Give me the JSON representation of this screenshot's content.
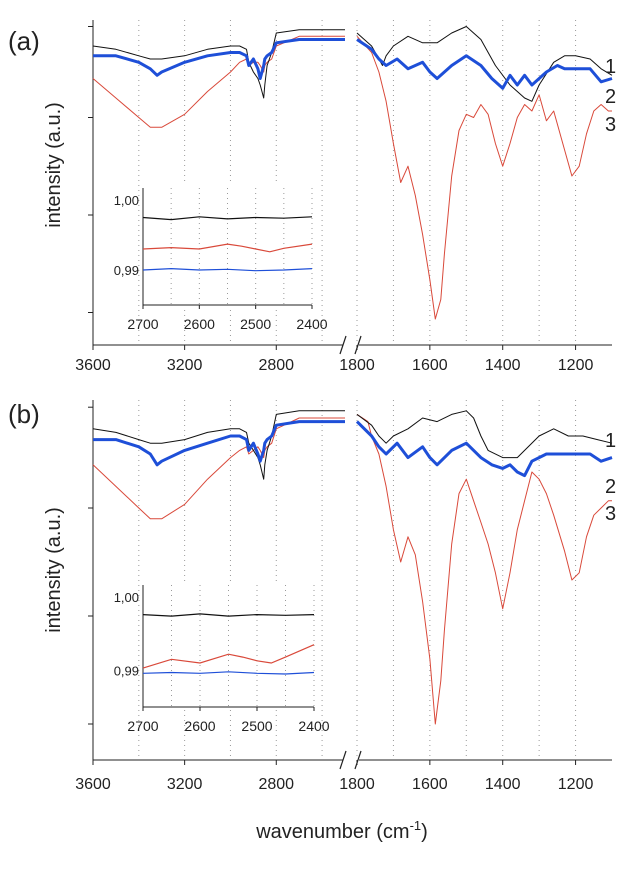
{
  "colors": {
    "trace1": "#111111",
    "trace2": "#1e4fd8",
    "trace3": "#d9493a",
    "grid": "#9a9a9a",
    "axis": "#222222"
  },
  "common": {
    "xlabel": "wavenumber (cm",
    "xlabel_sup": "-1",
    "xlabel_end": ")"
  },
  "chart_data": [
    {
      "panel": "(a)",
      "type": "line",
      "ylabel": "intensity (a.u.)",
      "x_axis": {
        "break": [
          2500,
          1800
        ],
        "ticks": [
          3600,
          3200,
          2800,
          1800,
          1600,
          1400,
          1200
        ],
        "range": [
          3600,
          1100
        ],
        "reversed": true
      },
      "series_labels": [
        "1",
        "2",
        "3"
      ],
      "series": [
        {
          "name": "1",
          "x": [
            3600,
            3500,
            3400,
            3350,
            3300,
            3200,
            3100,
            3000,
            2960,
            2930,
            2920,
            2900,
            2880,
            2870,
            2855,
            2850,
            2840,
            2820,
            2800,
            2700,
            2600,
            2500,
            1800,
            1760,
            1740,
            1730,
            1720,
            1700,
            1660,
            1620,
            1580,
            1540,
            1500,
            1460,
            1420,
            1380,
            1340,
            1320,
            1300,
            1260,
            1230,
            1200,
            1160,
            1130,
            1100
          ],
          "y": [
            92,
            91,
            89,
            88,
            88,
            89,
            91,
            92,
            92,
            91,
            87,
            84,
            82,
            80,
            76,
            80,
            86,
            90,
            96,
            97,
            97,
            97,
            96,
            92,
            88,
            86,
            89,
            92,
            95,
            93,
            93,
            96,
            98,
            94,
            86,
            80,
            76,
            75,
            80,
            87,
            89,
            89,
            88,
            85,
            83
          ]
        },
        {
          "name": "2",
          "x": [
            3600,
            3500,
            3400,
            3350,
            3320,
            3300,
            3200,
            3100,
            3000,
            2960,
            2930,
            2920,
            2900,
            2880,
            2870,
            2855,
            2850,
            2840,
            2820,
            2800,
            2700,
            2600,
            2500,
            1800,
            1760,
            1740,
            1720,
            1690,
            1660,
            1620,
            1600,
            1580,
            1540,
            1500,
            1460,
            1430,
            1400,
            1380,
            1360,
            1340,
            1320,
            1280,
            1250,
            1230,
            1200,
            1160,
            1130,
            1100
          ],
          "y": [
            89,
            89,
            87,
            85,
            83,
            84,
            87,
            89,
            90,
            90,
            89,
            86,
            88,
            85,
            82,
            86,
            88,
            89,
            90,
            93,
            94,
            94,
            94,
            94,
            91,
            88,
            86,
            88,
            85,
            87,
            84,
            82,
            86,
            89,
            86,
            82,
            79,
            83,
            80,
            83,
            80,
            84,
            86,
            85,
            85,
            85,
            81,
            82
          ]
        },
        {
          "name": "3",
          "x": [
            3600,
            3500,
            3400,
            3350,
            3300,
            3200,
            3100,
            3000,
            2960,
            2930,
            2920,
            2900,
            2880,
            2870,
            2855,
            2850,
            2840,
            2820,
            2800,
            2700,
            2600,
            2500,
            1800,
            1760,
            1740,
            1720,
            1700,
            1680,
            1660,
            1640,
            1620,
            1600,
            1585,
            1570,
            1560,
            1540,
            1520,
            1500,
            1480,
            1460,
            1440,
            1420,
            1400,
            1380,
            1360,
            1340,
            1320,
            1300,
            1280,
            1260,
            1230,
            1210,
            1190,
            1170,
            1150,
            1130,
            1110,
            1100
          ],
          "y": [
            82,
            76,
            70,
            67,
            67,
            71,
            78,
            84,
            87,
            88,
            86,
            87,
            87,
            86,
            84,
            86,
            87,
            88,
            92,
            95,
            95,
            95,
            95,
            90,
            84,
            75,
            62,
            50,
            55,
            46,
            34,
            20,
            8,
            14,
            28,
            52,
            66,
            71,
            70,
            74,
            71,
            62,
            55,
            62,
            70,
            74,
            72,
            77,
            69,
            72,
            60,
            52,
            55,
            65,
            72,
            74,
            72,
            72
          ]
        }
      ],
      "inset": {
        "xticks": [
          2700,
          2600,
          2500,
          2400
        ],
        "yticks": [
          "1,00",
          "0,99"
        ],
        "y_values": [
          1.0,
          0.99
        ],
        "xlim": [
          2700,
          2400
        ],
        "ylim": [
          0.985,
          1.0
        ],
        "series": [
          {
            "name": "1",
            "x": [
              2700,
              2650,
              2600,
              2550,
              2500,
              2450,
              2400
            ],
            "y": [
              0.9975,
              0.9972,
              0.9976,
              0.9973,
              0.9975,
              0.9974,
              0.9976
            ]
          },
          {
            "name": "2",
            "x": [
              2700,
              2650,
              2600,
              2550,
              2500,
              2450,
              2400
            ],
            "y": [
              0.99,
              0.9902,
              0.99,
              0.9901,
              0.9899,
              0.99,
              0.9902
            ]
          },
          {
            "name": "3",
            "x": [
              2700,
              2650,
              2600,
              2550,
              2525,
              2500,
              2475,
              2450,
              2400
            ],
            "y": [
              0.993,
              0.9932,
              0.993,
              0.9937,
              0.9934,
              0.993,
              0.9926,
              0.9931,
              0.9937
            ]
          }
        ]
      }
    },
    {
      "panel": "(b)",
      "type": "line",
      "ylabel": "intensity (a.u.)",
      "x_axis": {
        "break": [
          2500,
          1800
        ],
        "ticks": [
          3600,
          3200,
          2800,
          1800,
          1600,
          1400,
          1200
        ],
        "range": [
          3600,
          1100
        ],
        "reversed": true
      },
      "series_labels": [
        "1",
        "2",
        "3"
      ],
      "series": [
        {
          "name": "1",
          "x": [
            3600,
            3500,
            3400,
            3350,
            3300,
            3200,
            3100,
            3000,
            2960,
            2930,
            2920,
            2900,
            2880,
            2870,
            2855,
            2850,
            2840,
            2820,
            2800,
            2700,
            2600,
            2500,
            1800,
            1760,
            1740,
            1720,
            1700,
            1660,
            1620,
            1580,
            1540,
            1500,
            1480,
            1460,
            1440,
            1400,
            1360,
            1340,
            1300,
            1260,
            1220,
            1180,
            1140,
            1100
          ],
          "y": [
            92,
            91,
            89,
            88,
            88,
            89,
            91,
            92,
            92,
            91,
            88,
            86,
            84,
            82,
            78,
            82,
            86,
            90,
            96,
            97,
            97,
            97,
            96,
            93,
            90,
            88,
            90,
            92,
            95,
            94,
            96,
            97,
            95,
            90,
            86,
            84,
            84,
            86,
            90,
            92,
            90,
            90,
            89,
            88
          ]
        },
        {
          "name": "2",
          "x": [
            3600,
            3500,
            3400,
            3350,
            3320,
            3300,
            3200,
            3100,
            3000,
            2960,
            2930,
            2920,
            2900,
            2880,
            2870,
            2855,
            2850,
            2840,
            2820,
            2800,
            2700,
            2600,
            2500,
            1800,
            1760,
            1740,
            1720,
            1690,
            1660,
            1620,
            1600,
            1580,
            1540,
            1500,
            1460,
            1430,
            1400,
            1380,
            1360,
            1340,
            1320,
            1300,
            1280,
            1250,
            1200,
            1160,
            1130,
            1100
          ],
          "y": [
            89,
            89,
            87,
            85,
            82,
            83,
            86,
            88,
            90,
            90,
            89,
            86,
            88,
            85,
            83,
            86,
            88,
            89,
            90,
            93,
            94,
            94,
            94,
            94,
            90,
            87,
            85,
            88,
            84,
            87,
            84,
            82,
            86,
            88,
            84,
            82,
            81,
            82,
            80,
            79,
            83,
            84,
            85,
            85,
            85,
            85,
            83,
            84
          ]
        },
        {
          "name": "3",
          "x": [
            3600,
            3500,
            3400,
            3350,
            3300,
            3200,
            3100,
            3000,
            2960,
            2930,
            2920,
            2900,
            2880,
            2870,
            2855,
            2850,
            2840,
            2820,
            2800,
            2700,
            2600,
            2500,
            1800,
            1770,
            1760,
            1740,
            1720,
            1700,
            1680,
            1660,
            1640,
            1620,
            1600,
            1585,
            1570,
            1560,
            1540,
            1520,
            1500,
            1480,
            1460,
            1440,
            1420,
            1400,
            1380,
            1360,
            1340,
            1320,
            1300,
            1280,
            1260,
            1230,
            1210,
            1190,
            1170,
            1150,
            1130,
            1110,
            1100
          ],
          "y": [
            82,
            76,
            70,
            67,
            67,
            71,
            78,
            84,
            86,
            87,
            85,
            86,
            87,
            86,
            84,
            86,
            87,
            88,
            92,
            95,
            95,
            95,
            96,
            94,
            90,
            85,
            76,
            64,
            55,
            62,
            57,
            44,
            28,
            10,
            22,
            36,
            60,
            74,
            78,
            72,
            66,
            60,
            52,
            42,
            52,
            64,
            72,
            80,
            78,
            74,
            68,
            58,
            50,
            52,
            62,
            68,
            70,
            72,
            72
          ]
        }
      ],
      "inset": {
        "xticks": [
          2700,
          2600,
          2500,
          2400
        ],
        "yticks": [
          "1,00",
          "0,99"
        ],
        "y_values": [
          1.0,
          0.99
        ],
        "xlim": [
          2700,
          2400
        ],
        "ylim": [
          0.985,
          1.0
        ],
        "series": [
          {
            "name": "1",
            "x": [
              2700,
              2650,
              2600,
              2550,
              2500,
              2450,
              2400
            ],
            "y": [
              0.9976,
              0.9974,
              0.9977,
              0.9974,
              0.9976,
              0.9975,
              0.9976
            ]
          },
          {
            "name": "2",
            "x": [
              2700,
              2650,
              2600,
              2550,
              2500,
              2450,
              2400
            ],
            "y": [
              0.9896,
              0.9897,
              0.9896,
              0.9898,
              0.9896,
              0.9895,
              0.9897
            ]
          },
          {
            "name": "3",
            "x": [
              2700,
              2650,
              2600,
              2550,
              2525,
              2500,
              2475,
              2450,
              2400
            ],
            "y": [
              0.9903,
              0.9915,
              0.991,
              0.9922,
              0.9918,
              0.9913,
              0.991,
              0.9918,
              0.9935
            ]
          }
        ]
      }
    }
  ]
}
